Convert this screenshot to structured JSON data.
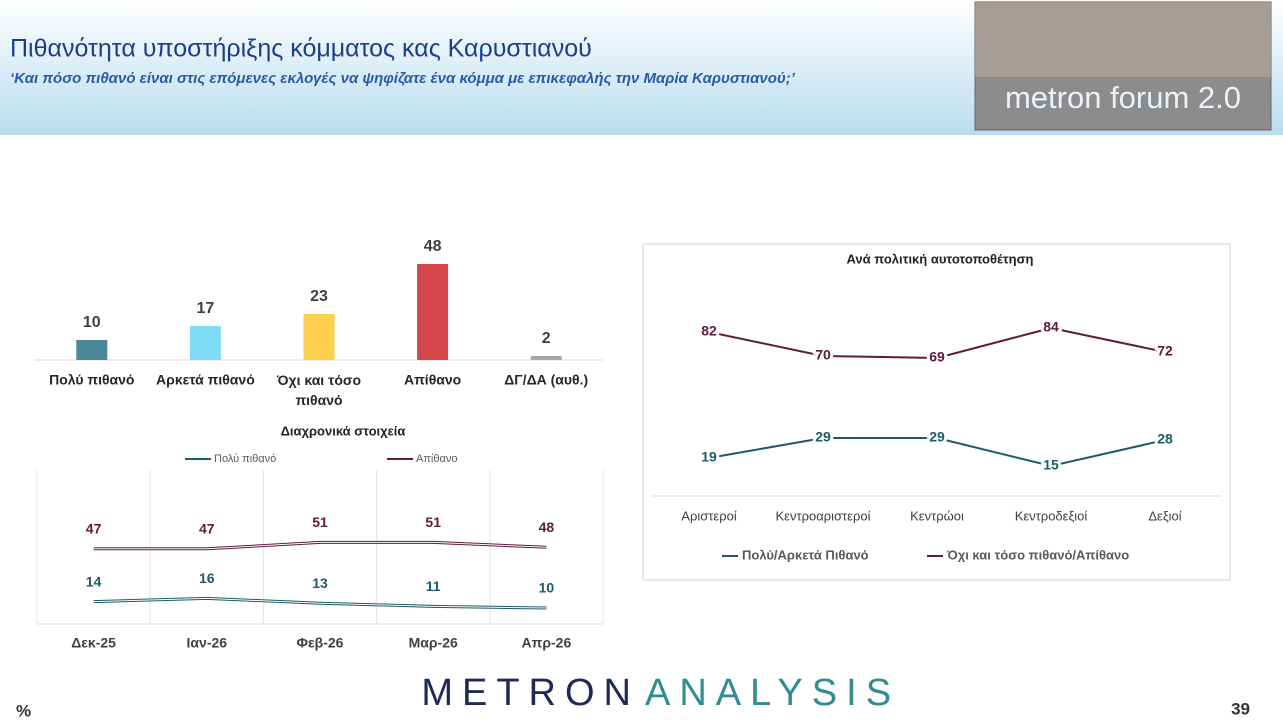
{
  "header": {
    "title": "Πιθανότητα υποστήριξης κόμματος κας Καρυστιανού",
    "subtitle": "‘Και πόσο πιθανό είναι στις επόμενες εκλογές να ψηφίζατε ένα κόμμα με επικεφαλής την Μαρία Καρυστιανού;’",
    "logo": "metron forum 2.0"
  },
  "footer": {
    "brand_left": "METRON",
    "brand_right": "ANALYSIS",
    "unit": "%",
    "page": "39"
  },
  "chart_data": [
    {
      "type": "bar",
      "categories": [
        "Πολύ πιθανό",
        "Αρκετά πιθανό",
        "Όχι και τόσο πιθανό",
        "Απίθανο",
        "ΔΓ/ΔΑ (αυθ.)"
      ],
      "values": [
        10,
        17,
        23,
        48,
        2
      ],
      "colors": [
        "#4b8797",
        "#7fdcf6",
        "#fdd04f",
        "#d5474a",
        "#a6a6a6"
      ]
    },
    {
      "type": "line",
      "title": "Διαχρονικά στοιχεία",
      "categories": [
        "Δεκ-25",
        "Ιαν-26",
        "Φεβ-26",
        "Μαρ-26",
        "Απρ-26"
      ],
      "series": [
        {
          "name": "Πολύ πιθανό",
          "color": "#1d5b68",
          "values": [
            14,
            16,
            13,
            11,
            10
          ]
        },
        {
          "name": "Απίθανο",
          "color": "#5e1a3f",
          "values": [
            47,
            47,
            51,
            51,
            48
          ]
        }
      ]
    },
    {
      "type": "line",
      "title": "Ανά πολιτική αυτοτοποθέτηση",
      "categories": [
        "Αριστεροί",
        "Κεντροαριστεροί",
        "Κεντρώοι",
        "Κεντροδεξιοί",
        "Δεξιοί"
      ],
      "series": [
        {
          "name": "Πολύ/Αρκετά Πιθανό",
          "color": "#1d5b68",
          "values": [
            19,
            29,
            29,
            15,
            28
          ]
        },
        {
          "name": "Όχι και τόσο πιθανό/Απίθανο",
          "color": "#5e1a3f",
          "values": [
            82,
            70,
            69,
            84,
            72
          ]
        }
      ]
    }
  ]
}
